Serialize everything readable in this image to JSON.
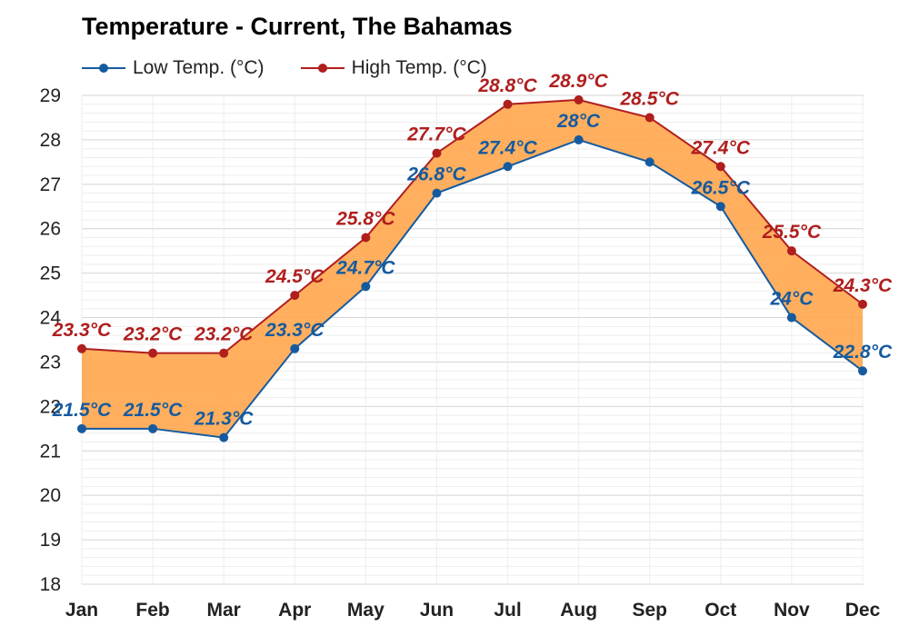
{
  "chart_data": {
    "type": "area",
    "title": "Temperature - Current, The Bahamas",
    "categories": [
      "Jan",
      "Feb",
      "Mar",
      "Apr",
      "May",
      "Jun",
      "Jul",
      "Aug",
      "Sep",
      "Oct",
      "Nov",
      "Dec"
    ],
    "series": [
      {
        "name": "Low Temp. (°C)",
        "color": "#155a9f",
        "values": [
          21.5,
          21.5,
          21.3,
          23.3,
          24.7,
          26.8,
          27.4,
          28.0,
          27.5,
          26.5,
          24.0,
          22.8
        ],
        "labels": [
          "21.5°C",
          "21.5°C",
          "21.3°C",
          "23.3°C",
          "24.7°C",
          "26.8°C",
          "27.4°C",
          "28°C",
          "",
          "26.5°C",
          "24°C",
          "22.8°C"
        ]
      },
      {
        "name": "High Temp. (°C)",
        "color": "#b01e1e",
        "values": [
          23.3,
          23.2,
          23.2,
          24.5,
          25.8,
          27.7,
          28.8,
          28.9,
          28.5,
          27.4,
          25.5,
          24.3
        ],
        "labels": [
          "23.3°C",
          "23.2°C",
          "23.2°C",
          "24.5°C",
          "25.8°C",
          "27.7°C",
          "28.8°C",
          "28.9°C",
          "28.5°C",
          "27.4°C",
          "25.5°C",
          "24.3°C"
        ]
      }
    ],
    "range_fill_color": "#ffa64d",
    "ylim": [
      18,
      29
    ],
    "yticks": [
      18,
      19,
      20,
      21,
      22,
      23,
      24,
      25,
      26,
      27,
      28,
      29
    ],
    "xlabel": "",
    "ylabel": "",
    "grid": true,
    "legend": "top-left"
  }
}
